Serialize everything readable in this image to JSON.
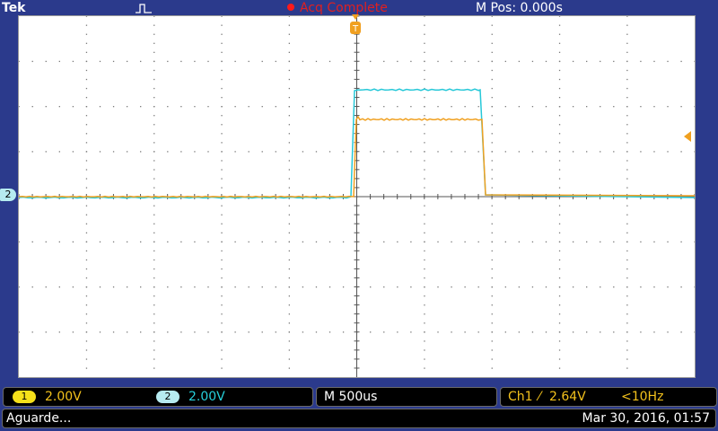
{
  "header": {
    "brand": "Tek",
    "acquisition_status": "Acq Complete",
    "horizontal_position": "M Pos: 0.000s",
    "acquisition_icon": "pulse-shape-icon"
  },
  "waveform_display": {
    "background": "#ffffff",
    "grid_color": "#7a7a7a",
    "channels": [
      {
        "id": "1",
        "color": "#f0a020",
        "marker": ""
      },
      {
        "id": "2",
        "color": "#27c8d8",
        "marker": "2"
      }
    ],
    "trigger_position_marker": "T",
    "trigger_level_arrow_icon": "trigger-level-arrow-icon"
  },
  "channel_panel": {
    "ch1": {
      "label": "1",
      "scale": "2.00V",
      "color": "#f2c11c"
    },
    "ch2": {
      "label": "2",
      "scale": "2.00V",
      "color": "#27d0db"
    }
  },
  "timebase_panel": {
    "text": "M 500us"
  },
  "trigger_panel": {
    "source": "Ch1",
    "slope_icon": "rising-edge-icon",
    "slope": "⁄",
    "level": "2.64V",
    "frequency": "<10Hz"
  },
  "message_bar": {
    "message": "Aguarde...",
    "datetime": "Mar 30, 2016, 01:57"
  }
}
